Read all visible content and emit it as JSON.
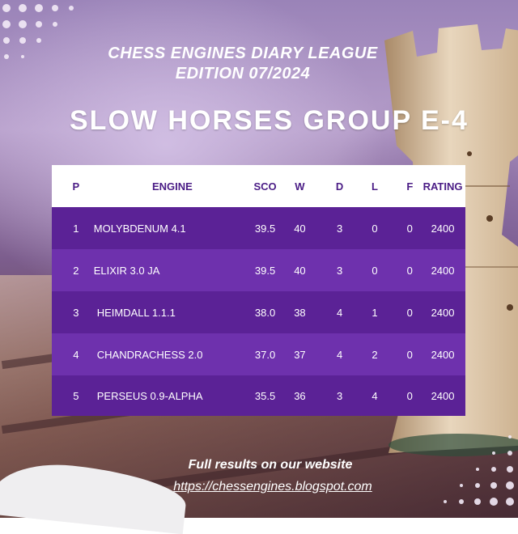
{
  "header": {
    "line1": "CHESS ENGINES DIARY LEAGUE",
    "line2": "EDITION 07/2024",
    "group_title": "SLOW HORSES GROUP E-4"
  },
  "table": {
    "headers": {
      "p": "P",
      "engine": "ENGINE",
      "sco": "SCO",
      "w": "W",
      "d": "D",
      "l": "L",
      "f": "F",
      "rating": "RATING"
    },
    "rows": [
      {
        "p": "1",
        "engine": "MOLYBDENUM 4.1",
        "sco": "39.5",
        "w": "40",
        "d": "3",
        "l": "0",
        "f": "0",
        "rating": "2400"
      },
      {
        "p": "2",
        "engine": "ELIXIR 3.0 JA",
        "sco": "39.5",
        "w": "40",
        "d": "3",
        "l": "0",
        "f": "0",
        "rating": "2400"
      },
      {
        "p": "3",
        "engine": "HEIMDALL 1.1.1",
        "sco": "38.0",
        "w": "38",
        "d": "4",
        "l": "1",
        "f": "0",
        "rating": "2400"
      },
      {
        "p": "4",
        "engine": "CHANDRACHESS 2.0",
        "sco": "37.0",
        "w": "37",
        "d": "4",
        "l": "2",
        "f": "0",
        "rating": "2400"
      },
      {
        "p": "5",
        "engine": "PERSEUS 0.9-ALPHA",
        "sco": "35.5",
        "w": "36",
        "d": "3",
        "l": "4",
        "f": "0",
        "rating": "2400"
      }
    ]
  },
  "footer": {
    "text": "Full results on our website",
    "link": "https://chessengines.blogspot.com"
  },
  "colors": {
    "header_bg": "#ffffff",
    "header_text": "#4b1d86",
    "row_dark": "#5b2296",
    "row_light": "#6e31ad"
  }
}
